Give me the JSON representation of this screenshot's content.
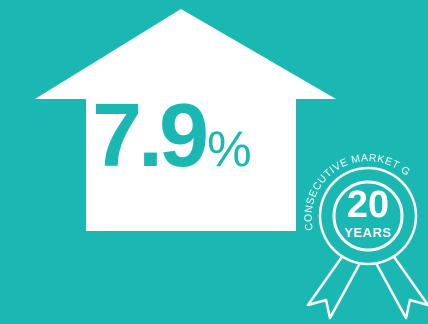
{
  "colors": {
    "background": "#1BB8B3",
    "foreground": "#FFFFFF"
  },
  "stat": {
    "value": "7.9",
    "unit": "%"
  },
  "badge": {
    "arc_text": "CONSECUTIVE MARKET G",
    "number": "20",
    "unit": "YEARS",
    "icon": "award-ribbon-icon"
  },
  "arrow": {
    "icon": "up-arrow-icon"
  }
}
